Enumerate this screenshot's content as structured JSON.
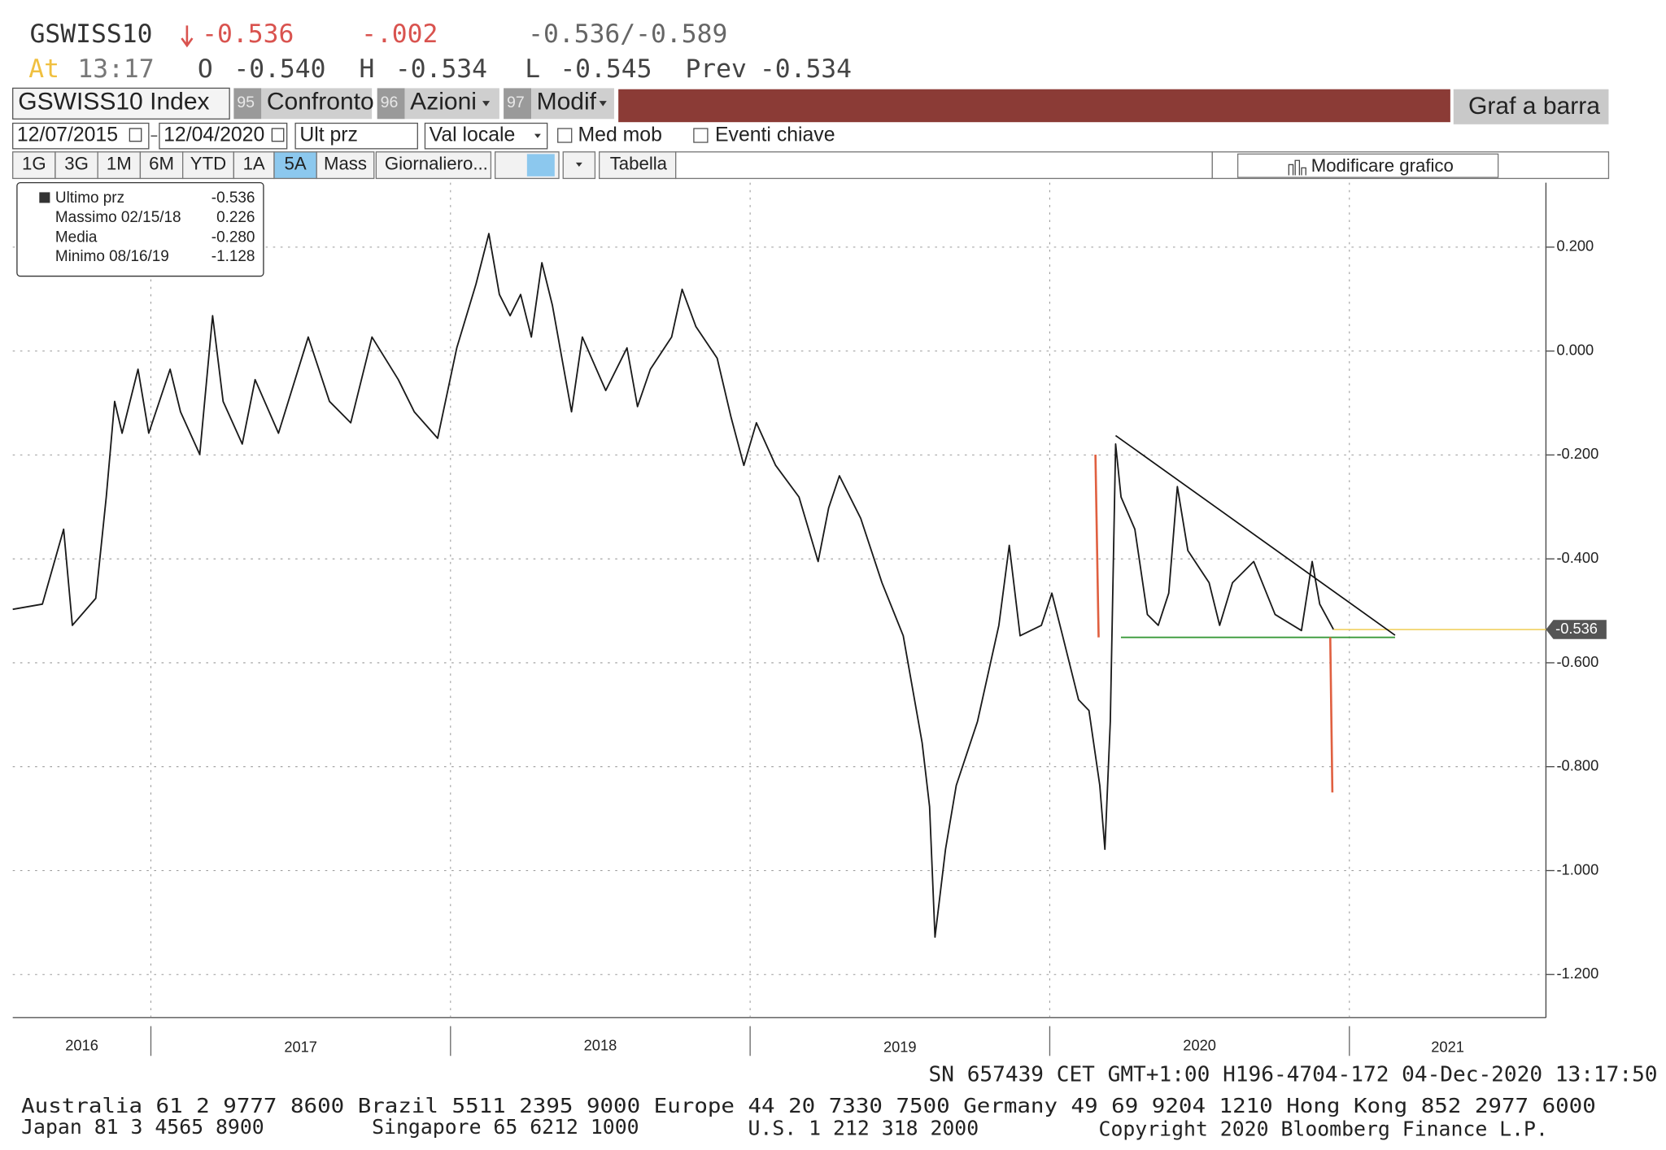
{
  "header": {
    "ticker": "GSWISS10",
    "change": "-0.536",
    "change_small": "-.002",
    "range": "-0.536/-0.589",
    "at_label": "At",
    "time": "13:17",
    "open_label": "O",
    "open": "-0.540",
    "high_label": "H",
    "high": "-0.534",
    "low_label": "L",
    "low": "-0.545",
    "prev_label": "Prev",
    "prev": "-0.534"
  },
  "toolbar": {
    "security": "GSWISS10 Index",
    "buttons": [
      {
        "num": "95",
        "label": "Confronto"
      },
      {
        "num": "96",
        "label": "Azioni"
      },
      {
        "num": "97",
        "label": "Modif"
      }
    ],
    "chart_type": "Graf a barra",
    "start_date": "12/07/2015",
    "end_date": "12/04/2020",
    "field": "Ult prz",
    "currency": "Val locale",
    "moving_avg": "Med mob",
    "key_events": "Eventi chiave",
    "periods": [
      "1G",
      "3G",
      "1M",
      "6M",
      "YTD",
      "1A",
      "5A",
      "Mass"
    ],
    "frequency": "Giornaliero...",
    "table": "Tabella",
    "edit": "Modificare grafico"
  },
  "chart_data": {
    "type": "line",
    "series": [
      {
        "name": "Ultimo prz",
        "color": "#1a1a1a",
        "x": [
          2016.539,
          2016.638,
          2016.709,
          2016.738,
          2016.816,
          2016.851,
          2016.879,
          2016.904,
          2016.957,
          2016.993,
          2017.064,
          2017.099,
          2017.163,
          2017.206,
          2017.241,
          2017.305,
          2017.348,
          2017.426,
          2017.525,
          2017.596,
          2017.667,
          2017.738,
          2017.826,
          2017.879,
          2017.957,
          2018.021,
          2018.085,
          2018.128,
          2018.163,
          2018.199,
          2018.234,
          2018.27,
          2018.305,
          2018.34,
          2018.404,
          2018.44,
          2018.518,
          2018.589,
          2018.624,
          2018.667,
          2018.738,
          2018.773,
          2018.819,
          2018.89,
          2018.936,
          2018.979,
          2019.021,
          2019.085,
          2019.163,
          2019.227,
          2019.262,
          2019.298,
          2019.369,
          2019.44,
          2019.511,
          2019.574,
          2019.599,
          2019.617,
          2019.652,
          2019.688,
          2019.759,
          2019.83,
          2019.865,
          2019.901,
          2019.972,
          2020.007,
          2020.043,
          2020.096,
          2020.131,
          2020.167,
          2020.184,
          2020.202,
          2020.22,
          2020.238,
          2020.284,
          2020.326,
          2020.362,
          2020.397,
          2020.426,
          2020.461,
          2020.532,
          2020.567,
          2020.61,
          2020.681,
          2020.752,
          2020.84,
          2020.876,
          2020.901,
          2020.947
        ],
        "values": [
          -0.497,
          -0.487,
          -0.343,
          -0.528,
          -0.476,
          -0.281,
          -0.097,
          -0.158,
          -0.035,
          -0.158,
          -0.035,
          -0.117,
          -0.199,
          0.068,
          -0.097,
          -0.179,
          -0.055,
          -0.158,
          0.027,
          -0.097,
          -0.138,
          0.027,
          -0.055,
          -0.117,
          -0.168,
          0.006,
          0.129,
          0.226,
          0.109,
          0.068,
          0.109,
          0.027,
          0.17,
          0.088,
          -0.117,
          0.027,
          -0.076,
          0.006,
          -0.107,
          -0.035,
          0.027,
          0.119,
          0.047,
          -0.014,
          -0.127,
          -0.22,
          -0.138,
          -0.22,
          -0.281,
          -0.405,
          -0.302,
          -0.24,
          -0.322,
          -0.446,
          -0.548,
          -0.754,
          -0.877,
          -1.128,
          -0.959,
          -0.836,
          -0.713,
          -0.528,
          -0.374,
          -0.548,
          -0.528,
          -0.466,
          -0.548,
          -0.671,
          -0.692,
          -0.836,
          -0.959,
          -0.713,
          -0.179,
          -0.281,
          -0.343,
          -0.507,
          -0.528,
          -0.466,
          -0.261,
          -0.384,
          -0.446,
          -0.528,
          -0.446,
          -0.405,
          -0.507,
          -0.538,
          -0.405,
          -0.487,
          -0.536
        ]
      }
    ],
    "last_price": -0.536,
    "last_price_color": "#f0d060",
    "stats": [
      {
        "name": "Massimo 02/15/18",
        "value": "0.226"
      },
      {
        "name": "Media",
        "value": "-0.280"
      },
      {
        "name": "Minimo 08/16/19",
        "value": "-1.128"
      }
    ],
    "xlim": [
      2016.539,
      2021.656
    ],
    "xticks": [
      2016,
      2017,
      2018,
      2019,
      2020,
      2021
    ],
    "ylim": [
      -1.283,
      0.324
    ],
    "yticks": [
      {
        "value": 0.2,
        "label": "0.200"
      },
      {
        "value": 0,
        "label": "0.000"
      },
      {
        "value": -0.2,
        "label": "-0.200"
      },
      {
        "value": -0.4,
        "label": "-0.400"
      },
      {
        "value": -0.6,
        "label": "-0.600"
      },
      {
        "value": -0.8,
        "label": "-0.800"
      },
      {
        "value": -1,
        "label": "-1.000"
      },
      {
        "value": -1.2,
        "label": "-1.200"
      }
    ],
    "grid": true
  },
  "footer": {
    "session": "SN 657439 CET  GMT+1:00 H196-4704-172 04-Dec-2020 13:17:50",
    "contacts_1": "Australia 61 2 9777 8600 Brazil 5511 2395 9000 Europe 44 20 7330 7500 Germany 49 69 9204 1210 Hong Kong 852 2977 6000",
    "japan": "Japan 81 3 4565 8900",
    "singapore": "Singapore 65 6212 1000",
    "us": "U.S. 1 212 318 2000",
    "copyright": "Copyright 2020 Bloomberg Finance L.P."
  }
}
